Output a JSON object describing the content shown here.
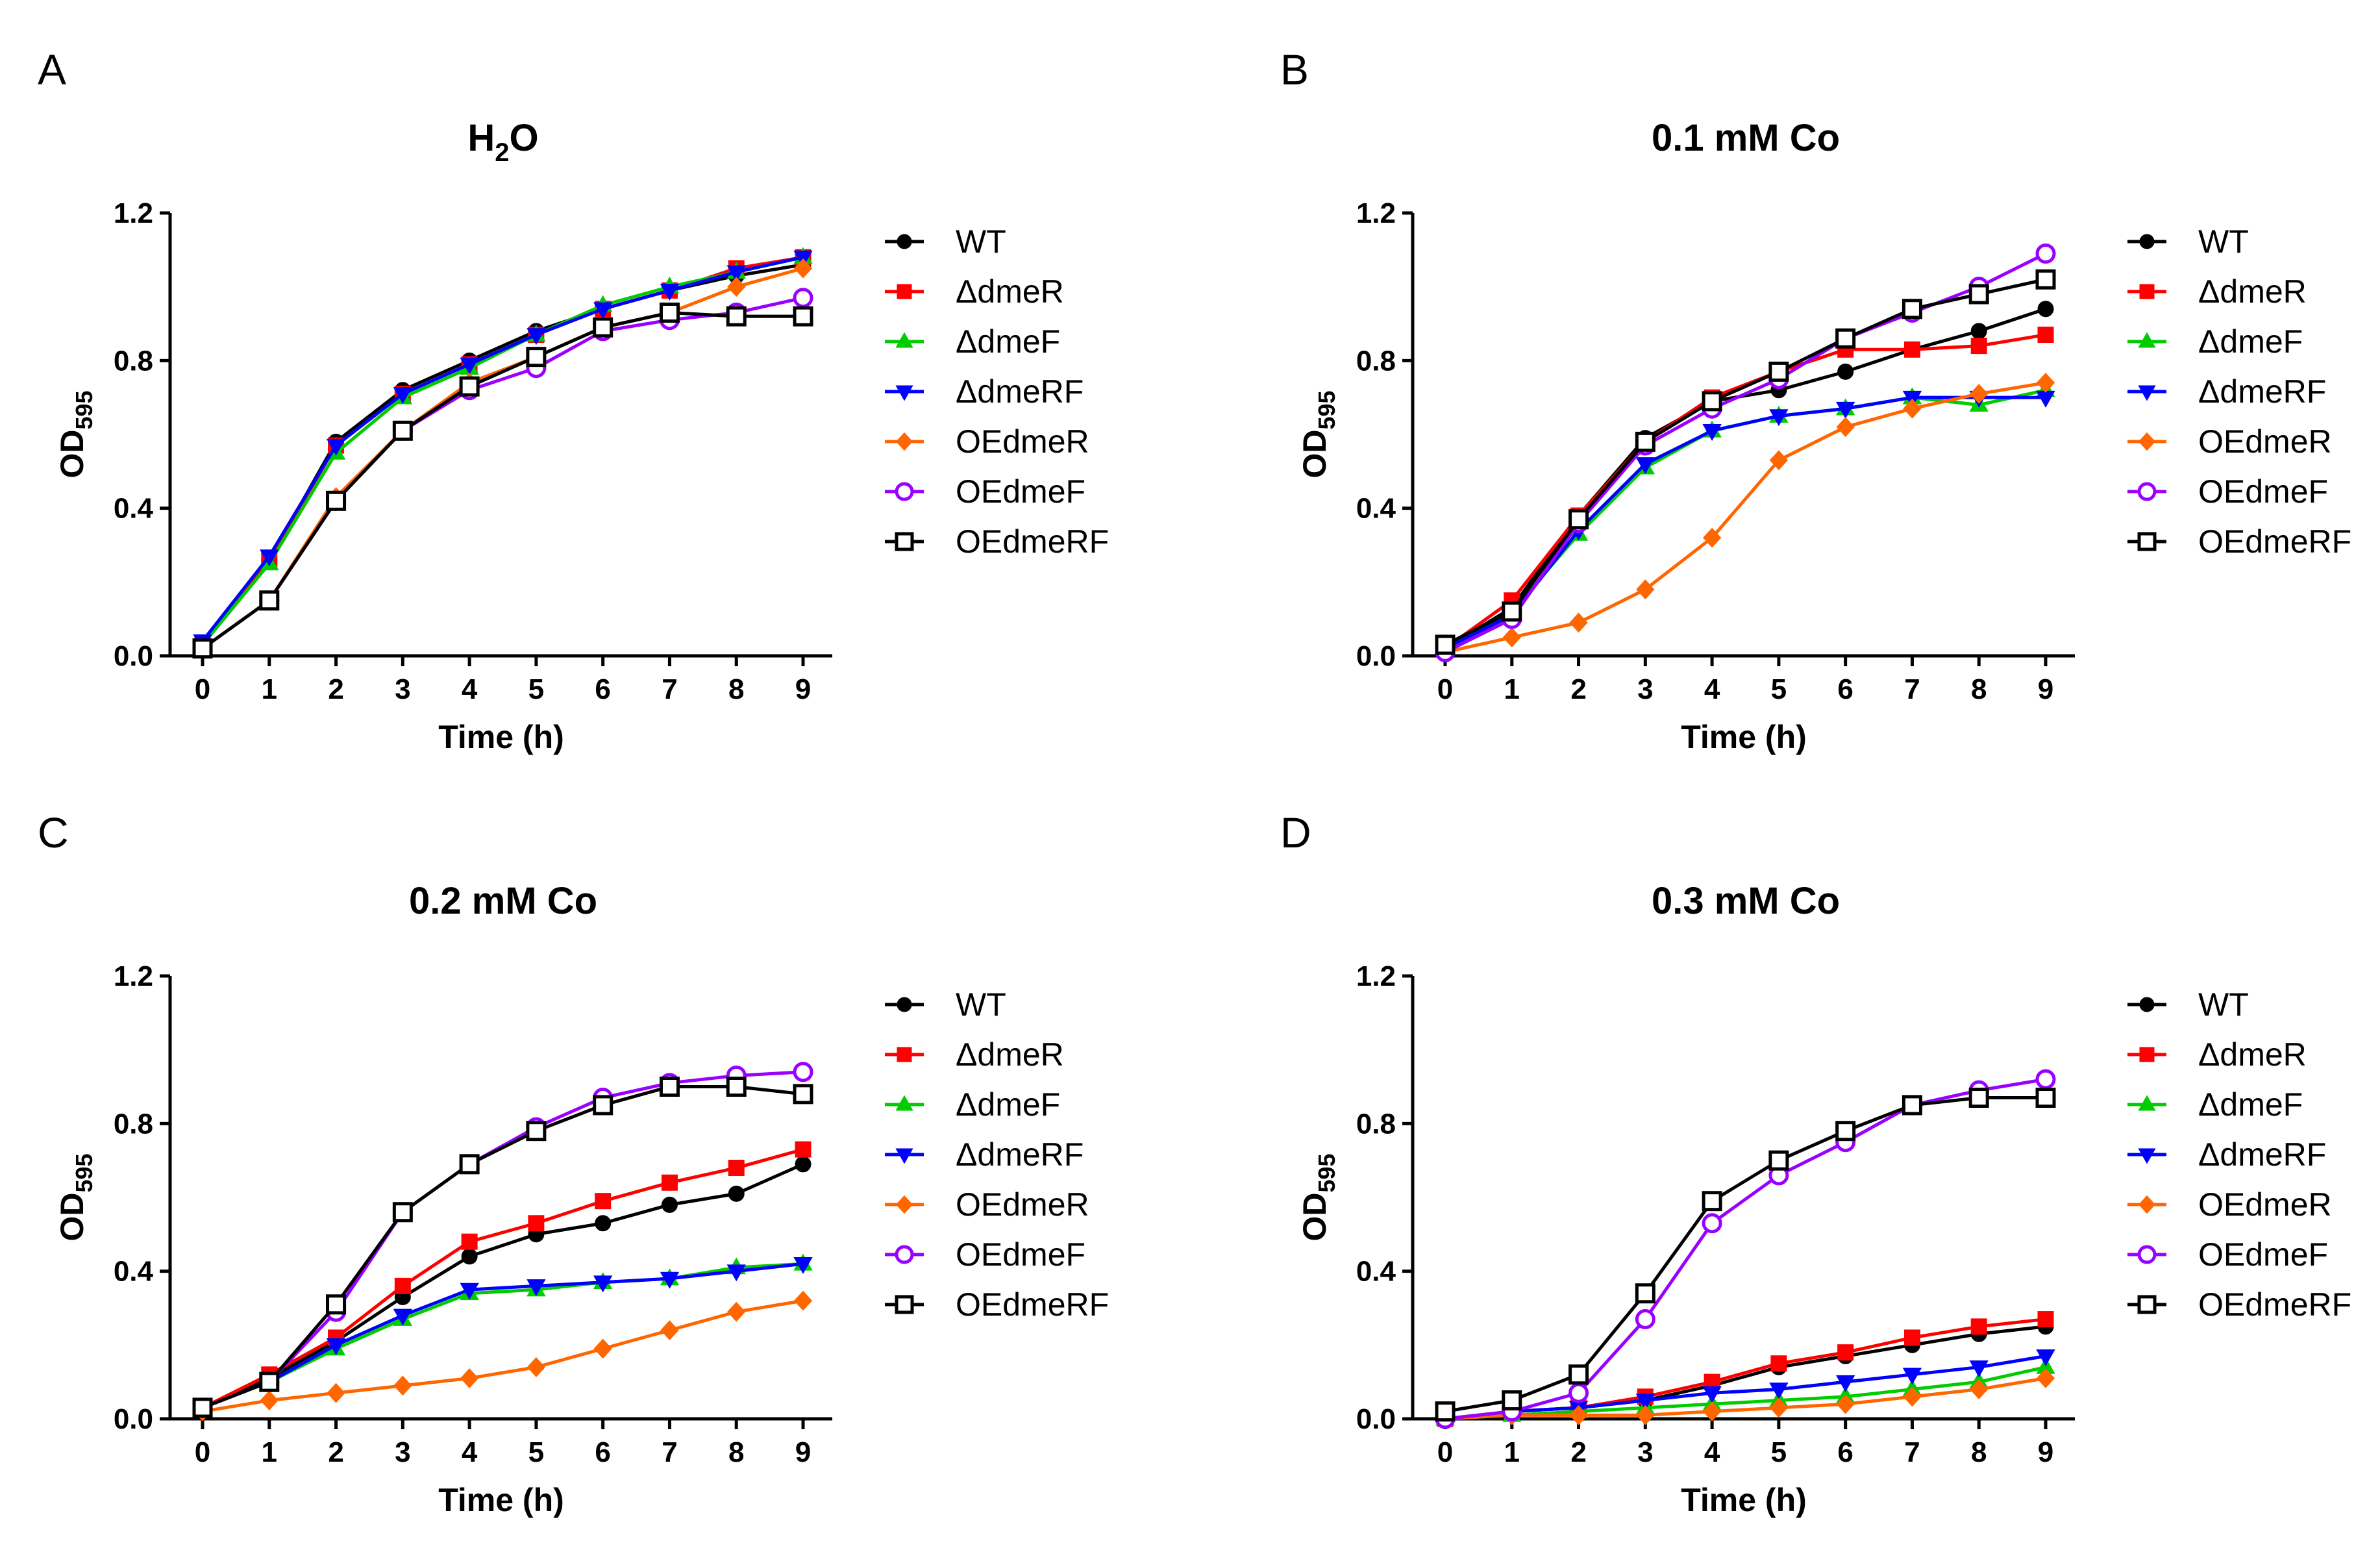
{
  "series_style": [
    {
      "name": "WT",
      "color": "#000000",
      "marker": "circle",
      "fill": "filled"
    },
    {
      "name": "ΔdmeR",
      "color": "#ff0000",
      "marker": "square",
      "fill": "filled"
    },
    {
      "name": "ΔdmeF",
      "color": "#00cc00",
      "marker": "triangle-up",
      "fill": "filled"
    },
    {
      "name": "ΔdmeRF",
      "color": "#0000ff",
      "marker": "triangle-down",
      "fill": "filled"
    },
    {
      "name": "OEdmeR",
      "color": "#ff6600",
      "marker": "diamond",
      "fill": "filled"
    },
    {
      "name": "OEdmeF",
      "color": "#9900ff",
      "marker": "circle",
      "fill": "open"
    },
    {
      "name": "OEdmeRF",
      "color": "#000000",
      "marker": "square",
      "fill": "open"
    }
  ],
  "chart_data": [
    {
      "type": "line",
      "panel": "A",
      "title_main": "H",
      "title_sub": "2",
      "title_tail": "O",
      "xlabel": "Time (h)",
      "ylabel_main": "OD",
      "ylabel_sub": "595",
      "x": [
        0,
        1,
        2,
        3,
        4,
        5,
        6,
        7,
        8,
        9
      ],
      "xlim": [
        0,
        9
      ],
      "ylim": [
        0,
        1.2
      ],
      "yticks": [
        "0.0",
        "0.4",
        "0.8",
        "1.2"
      ],
      "legend_position": "right",
      "series": [
        {
          "name": "WT",
          "values": [
            0.03,
            0.26,
            0.58,
            0.72,
            0.8,
            0.88,
            0.94,
            0.99,
            1.03,
            1.06
          ]
        },
        {
          "name": "ΔdmeR",
          "values": [
            0.03,
            0.26,
            0.57,
            0.71,
            0.79,
            0.87,
            0.94,
            0.99,
            1.05,
            1.08
          ]
        },
        {
          "name": "ΔdmeF",
          "values": [
            0.03,
            0.25,
            0.55,
            0.7,
            0.78,
            0.87,
            0.95,
            1.0,
            1.04,
            1.08
          ]
        },
        {
          "name": "ΔdmeRF",
          "values": [
            0.04,
            0.27,
            0.57,
            0.71,
            0.79,
            0.87,
            0.94,
            0.99,
            1.04,
            1.08
          ]
        },
        {
          "name": "OEdmeR",
          "values": [
            0.02,
            0.15,
            0.43,
            0.61,
            0.74,
            0.81,
            0.89,
            0.93,
            1.0,
            1.05
          ]
        },
        {
          "name": "OEdmeF",
          "values": [
            0.02,
            0.15,
            0.42,
            0.61,
            0.72,
            0.78,
            0.88,
            0.91,
            0.93,
            0.97
          ]
        },
        {
          "name": "OEdmeRF",
          "values": [
            0.02,
            0.15,
            0.42,
            0.61,
            0.73,
            0.81,
            0.89,
            0.93,
            0.92,
            0.92
          ]
        }
      ]
    },
    {
      "type": "line",
      "panel": "B",
      "title_main": "0.1 mM Co",
      "title_sub": "",
      "title_tail": "",
      "xlabel": "Time (h)",
      "ylabel_main": "OD",
      "ylabel_sub": "595",
      "x": [
        0,
        1,
        2,
        3,
        4,
        5,
        6,
        7,
        8,
        9
      ],
      "xlim": [
        0,
        9
      ],
      "ylim": [
        0,
        1.2
      ],
      "yticks": [
        "0.0",
        "0.4",
        "0.8",
        "1.2"
      ],
      "legend_position": "right",
      "series": [
        {
          "name": "WT",
          "values": [
            0.02,
            0.13,
            0.38,
            0.59,
            0.69,
            0.72,
            0.77,
            0.83,
            0.88,
            0.94
          ]
        },
        {
          "name": "ΔdmeR",
          "values": [
            0.02,
            0.15,
            0.38,
            0.58,
            0.7,
            0.77,
            0.83,
            0.83,
            0.84,
            0.87
          ]
        },
        {
          "name": "ΔdmeF",
          "values": [
            0.02,
            0.12,
            0.33,
            0.51,
            0.61,
            0.65,
            0.67,
            0.7,
            0.68,
            0.72
          ]
        },
        {
          "name": "ΔdmeRF",
          "values": [
            0.02,
            0.11,
            0.34,
            0.52,
            0.61,
            0.65,
            0.67,
            0.7,
            0.7,
            0.7
          ]
        },
        {
          "name": "OEdmeR",
          "values": [
            0.01,
            0.05,
            0.09,
            0.18,
            0.32,
            0.53,
            0.62,
            0.67,
            0.71,
            0.74
          ]
        },
        {
          "name": "OEdmeF",
          "values": [
            0.01,
            0.1,
            0.36,
            0.57,
            0.67,
            0.75,
            0.86,
            0.93,
            1.0,
            1.09
          ]
        },
        {
          "name": "OEdmeRF",
          "values": [
            0.03,
            0.12,
            0.37,
            0.58,
            0.69,
            0.77,
            0.86,
            0.94,
            0.98,
            1.02
          ]
        }
      ]
    },
    {
      "type": "line",
      "panel": "C",
      "title_main": "0.2 mM Co",
      "title_sub": "",
      "title_tail": "",
      "xlabel": "Time (h)",
      "ylabel_main": "OD",
      "ylabel_sub": "595",
      "x": [
        0,
        1,
        2,
        3,
        4,
        5,
        6,
        7,
        8,
        9
      ],
      "xlim": [
        0,
        9
      ],
      "ylim": [
        0,
        1.2
      ],
      "yticks": [
        "0.0",
        "0.4",
        "0.8",
        "1.2"
      ],
      "legend_position": "right",
      "series": [
        {
          "name": "WT",
          "values": [
            0.03,
            0.11,
            0.21,
            0.33,
            0.44,
            0.5,
            0.53,
            0.58,
            0.61,
            0.69
          ]
        },
        {
          "name": "ΔdmeR",
          "values": [
            0.03,
            0.12,
            0.22,
            0.36,
            0.48,
            0.53,
            0.59,
            0.64,
            0.68,
            0.73
          ]
        },
        {
          "name": "ΔdmeF",
          "values": [
            0.03,
            0.1,
            0.19,
            0.27,
            0.34,
            0.35,
            0.37,
            0.38,
            0.41,
            0.42
          ]
        },
        {
          "name": "ΔdmeRF",
          "values": [
            0.03,
            0.1,
            0.2,
            0.28,
            0.35,
            0.36,
            0.37,
            0.38,
            0.4,
            0.42
          ]
        },
        {
          "name": "OEdmeR",
          "values": [
            0.02,
            0.05,
            0.07,
            0.09,
            0.11,
            0.14,
            0.19,
            0.24,
            0.29,
            0.32
          ]
        },
        {
          "name": "OEdmeF",
          "values": [
            0.03,
            0.1,
            0.29,
            0.56,
            0.69,
            0.79,
            0.87,
            0.91,
            0.93,
            0.94
          ]
        },
        {
          "name": "OEdmeRF",
          "values": [
            0.03,
            0.1,
            0.31,
            0.56,
            0.69,
            0.78,
            0.85,
            0.9,
            0.9,
            0.88
          ]
        }
      ]
    },
    {
      "type": "line",
      "panel": "D",
      "title_main": "0.3 mM Co",
      "title_sub": "",
      "title_tail": "",
      "xlabel": "Time (h)",
      "ylabel_main": "OD",
      "ylabel_sub": "595",
      "x": [
        0,
        1,
        2,
        3,
        4,
        5,
        6,
        7,
        8,
        9
      ],
      "xlim": [
        0,
        9
      ],
      "ylim": [
        0,
        1.2
      ],
      "yticks": [
        "0.0",
        "0.4",
        "0.8",
        "1.2"
      ],
      "legend_position": "right",
      "series": [
        {
          "name": "WT",
          "values": [
            0.0,
            0.02,
            0.03,
            0.05,
            0.09,
            0.14,
            0.17,
            0.2,
            0.23,
            0.25
          ]
        },
        {
          "name": "ΔdmeR",
          "values": [
            0.0,
            0.02,
            0.03,
            0.06,
            0.1,
            0.15,
            0.18,
            0.22,
            0.25,
            0.27
          ]
        },
        {
          "name": "ΔdmeF",
          "values": [
            0.0,
            0.01,
            0.02,
            0.03,
            0.04,
            0.05,
            0.06,
            0.08,
            0.1,
            0.14
          ]
        },
        {
          "name": "ΔdmeRF",
          "values": [
            0.0,
            0.02,
            0.03,
            0.05,
            0.07,
            0.08,
            0.1,
            0.12,
            0.14,
            0.17
          ]
        },
        {
          "name": "OEdmeR",
          "values": [
            0.0,
            0.01,
            0.01,
            0.01,
            0.02,
            0.03,
            0.04,
            0.06,
            0.08,
            0.11
          ]
        },
        {
          "name": "OEdmeF",
          "values": [
            0.0,
            0.02,
            0.07,
            0.27,
            0.53,
            0.66,
            0.75,
            0.85,
            0.89,
            0.92
          ]
        },
        {
          "name": "OEdmeRF",
          "values": [
            0.02,
            0.05,
            0.12,
            0.34,
            0.59,
            0.7,
            0.78,
            0.85,
            0.87,
            0.87
          ]
        }
      ]
    }
  ]
}
